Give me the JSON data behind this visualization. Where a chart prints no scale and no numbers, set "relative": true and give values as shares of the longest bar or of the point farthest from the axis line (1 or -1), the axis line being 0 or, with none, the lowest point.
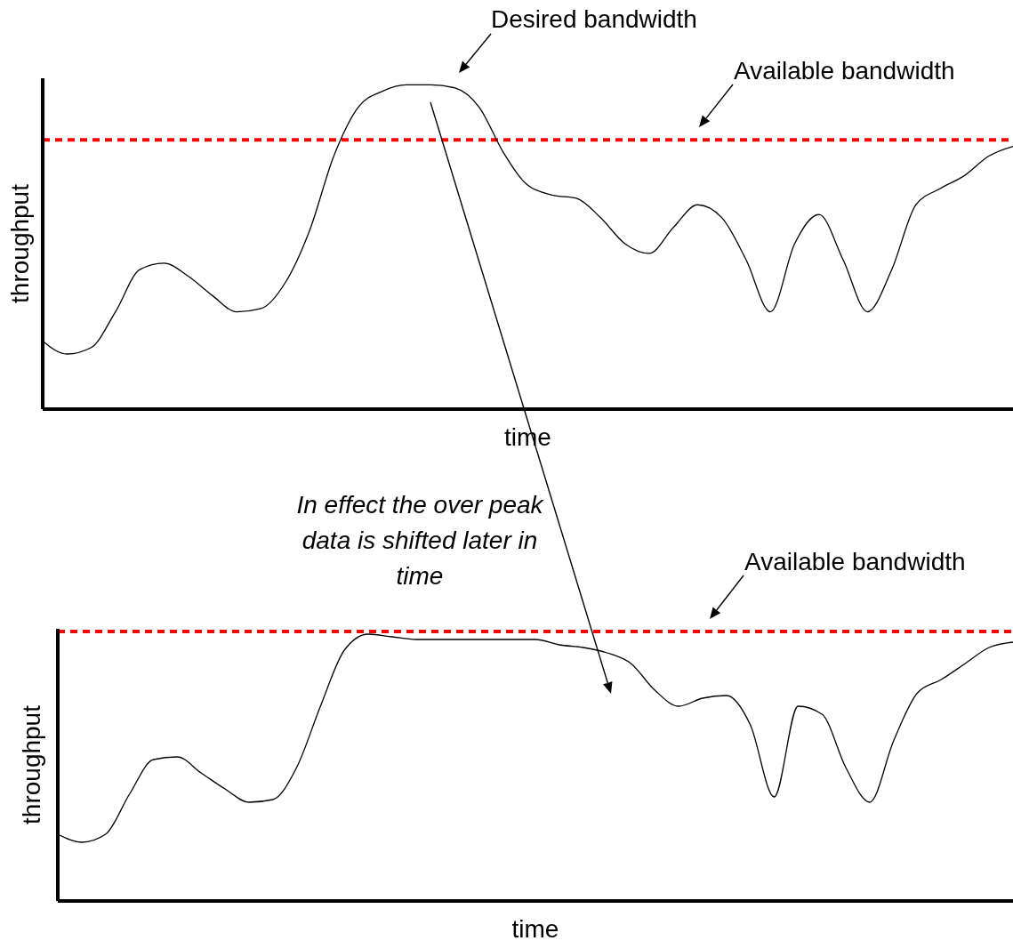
{
  "chart_data": [
    {
      "type": "line",
      "relative": true,
      "xlabel": "time",
      "ylabel": "throughput",
      "legend": false,
      "grid": false,
      "marker": "none",
      "categories": [
        null,
        null,
        null,
        null,
        null,
        null,
        null,
        null,
        null,
        null,
        null,
        null,
        null,
        null,
        null,
        null,
        null,
        null,
        null,
        null,
        null,
        null,
        null,
        null,
        null,
        null,
        null,
        null,
        null,
        null,
        null,
        null,
        null,
        null,
        null,
        null,
        null,
        null,
        null,
        null,
        null
      ],
      "series": [
        {
          "color": "#000000",
          "values": [
            0.21,
            0.17,
            0.19,
            0.3,
            0.43,
            0.45,
            0.41,
            0.35,
            0.3,
            0.31,
            0.39,
            0.55,
            0.78,
            0.93,
            0.98,
            1.0,
            1.0,
            0.99,
            0.93,
            0.79,
            0.69,
            0.66,
            0.65,
            0.59,
            0.51,
            0.48,
            0.56,
            0.63,
            0.59,
            0.46,
            0.3,
            0.51,
            0.6,
            0.46,
            0.3,
            0.43,
            0.63,
            0.68,
            0.72,
            0.78,
            0.81
          ]
        }
      ],
      "ref_lines": [
        {
          "axis": "y",
          "value": 0.83,
          "label": "Available bandwidth",
          "color": "#ff0000",
          "line_style": "dashed"
        }
      ],
      "annotations": [
        "Desired bandwidth"
      ]
    },
    {
      "type": "line",
      "relative": true,
      "xlabel": "time",
      "ylabel": "throughput",
      "legend": false,
      "grid": false,
      "marker": "none",
      "categories": [
        null,
        null,
        null,
        null,
        null,
        null,
        null,
        null,
        null,
        null,
        null,
        null,
        null,
        null,
        null,
        null,
        null,
        null,
        null,
        null,
        null,
        null,
        null,
        null,
        null,
        null,
        null,
        null,
        null,
        null,
        null,
        null,
        null,
        null,
        null,
        null,
        null,
        null,
        null,
        null,
        null
      ],
      "series": [
        {
          "color": "#000000",
          "values": [
            0.25,
            0.22,
            0.25,
            0.4,
            0.53,
            0.54,
            0.48,
            0.42,
            0.37,
            0.38,
            0.5,
            0.73,
            0.94,
            1.0,
            0.99,
            0.98,
            0.98,
            0.98,
            0.98,
            0.98,
            0.98,
            0.96,
            0.95,
            0.93,
            0.89,
            0.79,
            0.73,
            0.76,
            0.77,
            0.66,
            0.39,
            0.73,
            0.7,
            0.5,
            0.37,
            0.6,
            0.78,
            0.83,
            0.89,
            0.95,
            0.97
          ]
        }
      ],
      "ref_lines": [
        {
          "axis": "y",
          "value": 1.01,
          "label": "Available bandwidth",
          "color": "#ff0000",
          "line_style": "dashed"
        }
      ],
      "annotations": [
        "In effect the over peak data is shifted later in time"
      ]
    }
  ]
}
